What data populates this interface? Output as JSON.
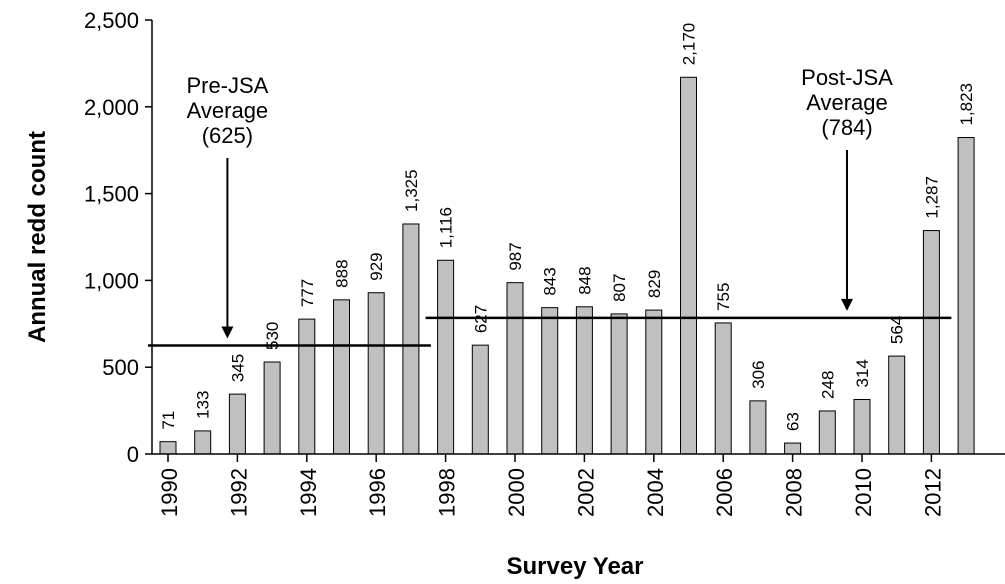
{
  "chart_data": {
    "type": "bar",
    "ylabel": "Annual redd count",
    "xlabel": "Survey Year",
    "ylim": [
      0,
      2500
    ],
    "yticks": [
      0,
      500,
      1000,
      1500,
      2000,
      2500
    ],
    "ytick_labels": [
      "0",
      "500",
      "1,000",
      "1,500",
      "2,000",
      "2,500"
    ],
    "categories": [
      "1990",
      "1991",
      "1992",
      "1993",
      "1994",
      "1995",
      "1996",
      "1997",
      "1998",
      "1999",
      "2000",
      "2001",
      "2002",
      "2003",
      "2004",
      "2005",
      "2006",
      "2007",
      "2008",
      "2009",
      "2010",
      "2011",
      "2012",
      "2013"
    ],
    "xtick_labels": [
      "1990",
      "1992",
      "1994",
      "1996",
      "1998",
      "2000",
      "2002",
      "2004",
      "2006",
      "2008",
      "2010",
      "2012"
    ],
    "values": [
      71,
      133,
      345,
      530,
      777,
      888,
      929,
      1325,
      1116,
      627,
      987,
      843,
      848,
      807,
      829,
      2170,
      755,
      306,
      63,
      248,
      314,
      564,
      1287,
      1823
    ],
    "data_labels": [
      "71",
      "133",
      "345",
      "530",
      "777",
      "888",
      "929",
      "1,325",
      "1,116",
      "627",
      "987",
      "843",
      "848",
      "807",
      "829",
      "2,170",
      "755",
      "306",
      "63",
      "248",
      "314",
      "564",
      "1,287",
      "1,823"
    ],
    "bar_color": "#c0c0c0",
    "grid": false,
    "averages": [
      {
        "label_lines": [
          "Pre-JSA",
          "Average",
          "(625)"
        ],
        "value": 625,
        "from": "1990",
        "to": "1997"
      },
      {
        "label_lines": [
          "Post-JSA",
          "Average",
          "(784)"
        ],
        "value": 784,
        "from": "1998",
        "to": "2012"
      }
    ]
  }
}
